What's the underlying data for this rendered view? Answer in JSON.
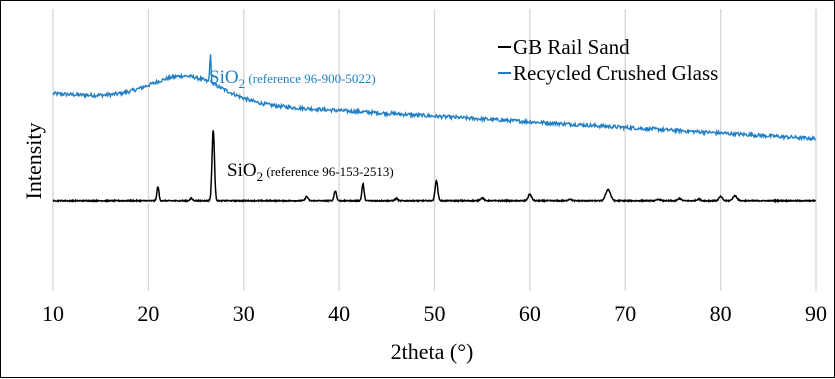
{
  "chart_data": {
    "type": "line",
    "title": "",
    "xlabel": "2theta (°)",
    "ylabel": "Intensity",
    "xlim": [
      10,
      90
    ],
    "ylim": [
      0,
      100
    ],
    "x_ticks": [
      "10",
      "20",
      "30",
      "40",
      "50",
      "60",
      "70",
      "80",
      "90"
    ],
    "grid": "vertical",
    "legend_position": "top-right",
    "series": [
      {
        "name": "GB Rail Sand",
        "color": "#000000",
        "baseline": 32,
        "peaks": [
          [
            21.0,
            5,
            0.15
          ],
          [
            24.5,
            0.8,
            0.2
          ],
          [
            26.8,
            25,
            0.18
          ],
          [
            36.6,
            1.5,
            0.2
          ],
          [
            39.6,
            3.5,
            0.18
          ],
          [
            42.5,
            6,
            0.16
          ],
          [
            46.0,
            0.8,
            0.2
          ],
          [
            50.2,
            7,
            0.2
          ],
          [
            55.0,
            1,
            0.25
          ],
          [
            60.0,
            2.3,
            0.25
          ],
          [
            64.2,
            0.6,
            0.25
          ],
          [
            68.2,
            4,
            0.35
          ],
          [
            73.5,
            0.5,
            0.25
          ],
          [
            75.7,
            0.8,
            0.25
          ],
          [
            77.7,
            0.6,
            0.25
          ],
          [
            80.0,
            1.5,
            0.25
          ],
          [
            81.5,
            1.8,
            0.3
          ]
        ]
      },
      {
        "name": "Recycled Crushed Glass",
        "color": "#1f7fc6",
        "start": 70,
        "end": 54,
        "hump_center": 24,
        "hump_height": 9,
        "peak": [
          26.5,
          10
        ]
      }
    ]
  },
  "annotations": {
    "blue_ref": {
      "main": "SiO",
      "sub": "2",
      "note": " (reference 96-900-5022)",
      "color": "#1f7fc6"
    },
    "black_ref": {
      "main": "SiO",
      "sub": "2",
      "note": " (reference 96-153-2513)",
      "color": "#000000"
    }
  }
}
